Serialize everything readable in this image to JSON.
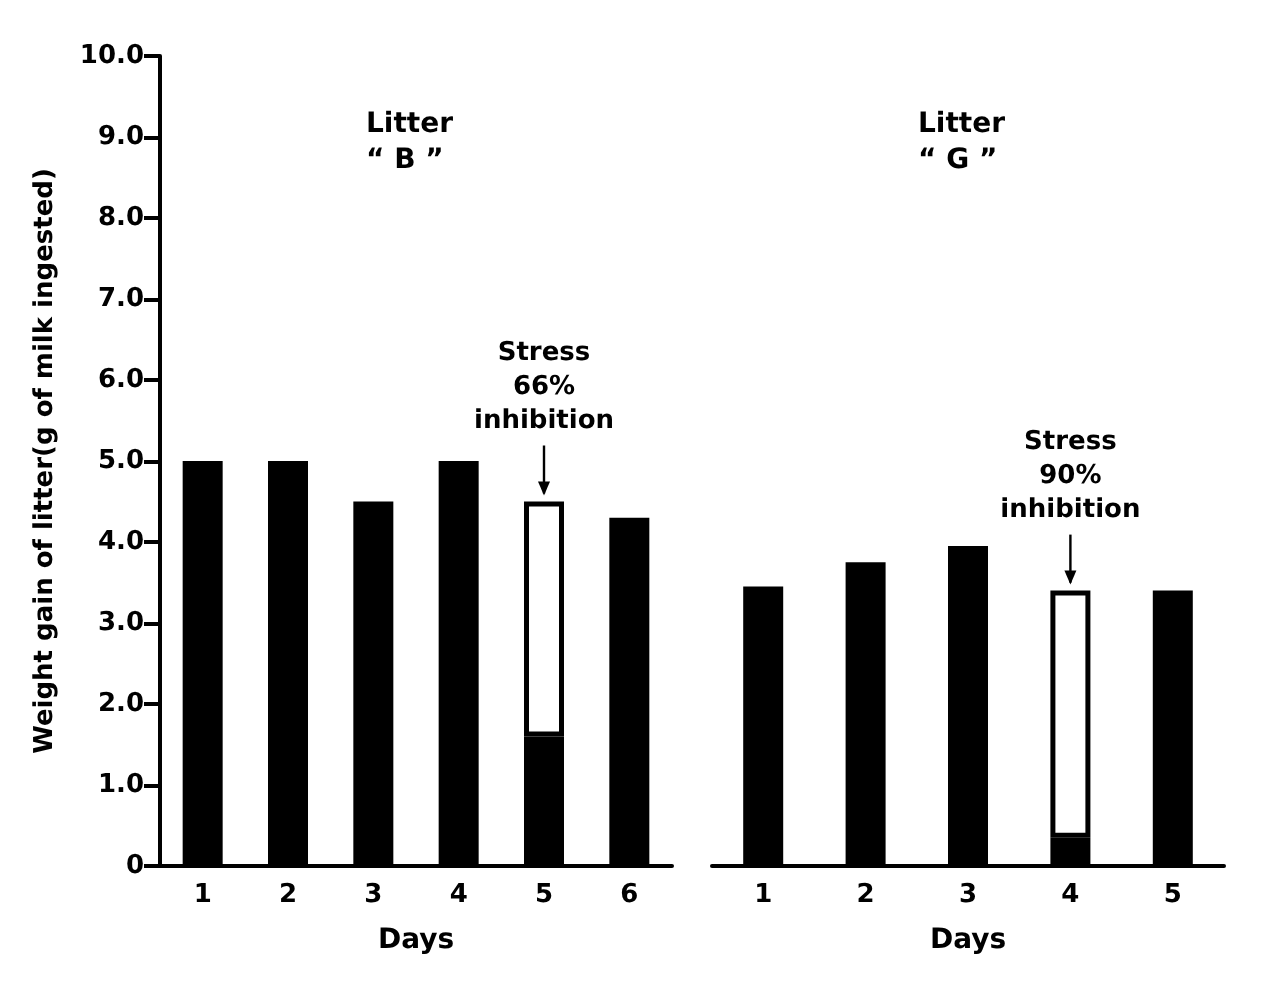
{
  "chart_data": [
    {
      "type": "bar",
      "title": "Litter\n“ B ”",
      "xlabel": "Days",
      "ylabel": "Weight gain of litter(g of milk ingested)",
      "categories": [
        "1",
        "2",
        "3",
        "4",
        "5",
        "6"
      ],
      "stacked": true,
      "series": [
        {
          "color": "#000000",
          "values": [
            5.0,
            5.0,
            4.5,
            5.0,
            1.6,
            4.3
          ]
        },
        {
          "color": "#ffffff",
          "values": [
            null,
            null,
            null,
            null,
            2.9,
            null
          ]
        }
      ],
      "ylim": [
        0,
        10
      ],
      "yticks": [
        0,
        {
          "value": 1,
          "label": "1.0"
        },
        {
          "value": 2,
          "label": "2.0"
        },
        {
          "value": 3,
          "label": "3.0"
        },
        {
          "value": 4,
          "label": "4.0"
        },
        {
          "value": 5,
          "label": "5.0"
        },
        {
          "value": 6,
          "label": "6.0"
        },
        {
          "value": 7,
          "label": "7.0"
        },
        {
          "value": 8,
          "label": "8.0"
        },
        {
          "value": 9,
          "label": "9.0"
        },
        {
          "value": 10,
          "label": "10.0"
        }
      ],
      "annotations": [
        {
          "text": "Stress\n66%\ninhibition",
          "x": "5",
          "y": 4.5
        }
      ],
      "grid": false
    },
    {
      "type": "bar",
      "title": "Litter\n“ G ”",
      "xlabel": "Days",
      "categories": [
        "1",
        "2",
        "3",
        "4",
        "5"
      ],
      "stacked": true,
      "series": [
        {
          "color": "#000000",
          "values": [
            3.45,
            3.75,
            3.95,
            0.35,
            3.4
          ]
        },
        {
          "color": "#ffffff",
          "values": [
            null,
            null,
            null,
            3.05,
            null
          ]
        }
      ],
      "ylim": [
        0,
        10
      ],
      "tick_labels": "x",
      "annotations": [
        {
          "text": "Stress\n90%\ninhibition",
          "x": "4",
          "y": 3.4
        }
      ],
      "grid": false
    }
  ]
}
